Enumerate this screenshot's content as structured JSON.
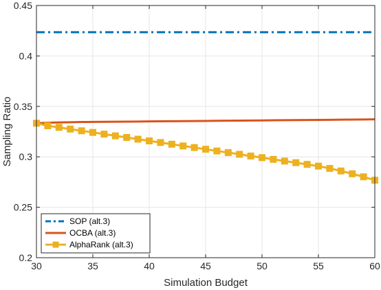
{
  "chart_data": {
    "type": "line",
    "title": "",
    "xlabel": "Simulation Budget",
    "ylabel": "Sampling Ratio",
    "xlim": [
      30,
      60
    ],
    "ylim": [
      0.2,
      0.45
    ],
    "xticks": [
      30,
      35,
      40,
      45,
      50,
      55,
      60
    ],
    "yticks": [
      0.2,
      0.25,
      0.3,
      0.35,
      0.4,
      0.45
    ],
    "ytick_labels": [
      "0.2",
      "0.25",
      "0.3",
      "0.35",
      "0.4",
      "0.45"
    ],
    "grid": true,
    "legend_position": "bottom-left",
    "x": [
      30,
      31,
      32,
      33,
      34,
      35,
      36,
      37,
      38,
      39,
      40,
      41,
      42,
      43,
      44,
      45,
      46,
      47,
      48,
      49,
      50,
      51,
      52,
      53,
      54,
      55,
      56,
      57,
      58,
      59,
      60
    ],
    "series": [
      {
        "name": "SOP (alt.3)",
        "color": "#0072BD",
        "style": "dashdot",
        "marker": "none",
        "values": [
          0.4235,
          0.4235,
          0.4235,
          0.4235,
          0.4235,
          0.4235,
          0.4235,
          0.4235,
          0.4235,
          0.4235,
          0.4235,
          0.4235,
          0.4235,
          0.4235,
          0.4235,
          0.4235,
          0.4235,
          0.4235,
          0.4235,
          0.4235,
          0.4235,
          0.4235,
          0.4235,
          0.4235,
          0.4235,
          0.4235,
          0.4235,
          0.4235,
          0.4235,
          0.4235,
          0.4235
        ]
      },
      {
        "name": "OCBA (alt.3)",
        "color": "#D95319",
        "style": "solid",
        "marker": "none",
        "values": [
          0.3333,
          0.3338,
          0.3341,
          0.3343,
          0.3345,
          0.3346,
          0.3347,
          0.3348,
          0.3349,
          0.335,
          0.3351,
          0.3352,
          0.3353,
          0.3354,
          0.3355,
          0.3356,
          0.3357,
          0.3358,
          0.3359,
          0.336,
          0.3361,
          0.3362,
          0.3363,
          0.3364,
          0.3365,
          0.3366,
          0.3367,
          0.3368,
          0.3369,
          0.337,
          0.3372
        ]
      },
      {
        "name": "AlphaRank (alt.3)",
        "color": "#EDB120",
        "style": "solid",
        "marker": "square",
        "values": [
          0.3333,
          0.3308,
          0.3292,
          0.3275,
          0.3258,
          0.3242,
          0.3225,
          0.3208,
          0.3192,
          0.3175,
          0.3158,
          0.3142,
          0.3125,
          0.3108,
          0.3092,
          0.3075,
          0.3058,
          0.3042,
          0.3025,
          0.3008,
          0.2992,
          0.2975,
          0.2958,
          0.2942,
          0.2925,
          0.2908,
          0.2885,
          0.286,
          0.2832,
          0.2802,
          0.2768
        ]
      }
    ]
  }
}
